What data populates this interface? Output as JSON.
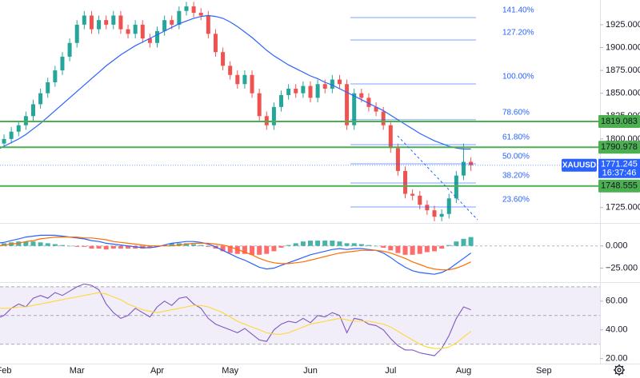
{
  "chart_data": [
    {
      "type": "candlestick",
      "x": [
        -2,
        0,
        2,
        4,
        6,
        8,
        10,
        12,
        14,
        16,
        18,
        20,
        22,
        24,
        26,
        28,
        30,
        32,
        34,
        36,
        38,
        40,
        42,
        44,
        46,
        48,
        50,
        52,
        54,
        56,
        58,
        60,
        62,
        64,
        66,
        68,
        70,
        72,
        74,
        76,
        78,
        80,
        82,
        84,
        86,
        88,
        90,
        92,
        94,
        96,
        98,
        100,
        102,
        104,
        106,
        108,
        110,
        112,
        114,
        116,
        118,
        120,
        122,
        124,
        126,
        128
      ],
      "open": [
        1790,
        1795,
        1800,
        1808,
        1815,
        1825,
        1838,
        1850,
        1862,
        1875,
        1890,
        1905,
        1925,
        1935,
        1920,
        1930,
        1925,
        1935,
        1920,
        1915,
        1925,
        1910,
        1905,
        1918,
        1930,
        1925,
        1940,
        1945,
        1938,
        1935,
        1915,
        1895,
        1880,
        1870,
        1860,
        1870,
        1850,
        1825,
        1815,
        1835,
        1848,
        1855,
        1850,
        1858,
        1845,
        1860,
        1855,
        1865,
        1860,
        1815,
        1850,
        1845,
        1835,
        1830,
        1815,
        1790,
        1765,
        1740,
        1738,
        1728,
        1722,
        1715,
        1718,
        1735,
        1760,
        1775
      ],
      "high": [
        1800,
        1805,
        1813,
        1820,
        1830,
        1843,
        1855,
        1867,
        1880,
        1895,
        1910,
        1930,
        1940,
        1940,
        1935,
        1935,
        1940,
        1940,
        1925,
        1930,
        1930,
        1915,
        1923,
        1935,
        1935,
        1945,
        1950,
        1950,
        1943,
        1940,
        1920,
        1900,
        1885,
        1875,
        1875,
        1875,
        1855,
        1830,
        1840,
        1853,
        1860,
        1860,
        1863,
        1863,
        1865,
        1865,
        1870,
        1870,
        1865,
        1855,
        1855,
        1850,
        1840,
        1835,
        1820,
        1795,
        1770,
        1745,
        1743,
        1733,
        1727,
        1723,
        1740,
        1765,
        1795,
        1780
      ],
      "low": [
        1785,
        1790,
        1795,
        1803,
        1810,
        1820,
        1833,
        1845,
        1857,
        1870,
        1885,
        1900,
        1920,
        1915,
        1915,
        1920,
        1920,
        1915,
        1910,
        1910,
        1905,
        1900,
        1900,
        1913,
        1920,
        1920,
        1935,
        1933,
        1930,
        1910,
        1890,
        1875,
        1865,
        1855,
        1855,
        1845,
        1820,
        1810,
        1810,
        1830,
        1843,
        1845,
        1845,
        1840,
        1840,
        1850,
        1850,
        1855,
        1810,
        1810,
        1840,
        1830,
        1825,
        1810,
        1785,
        1760,
        1735,
        1733,
        1723,
        1717,
        1710,
        1710,
        1713,
        1730,
        1755,
        1765
      ],
      "close": [
        1795,
        1800,
        1808,
        1815,
        1825,
        1838,
        1850,
        1862,
        1875,
        1890,
        1905,
        1925,
        1935,
        1920,
        1930,
        1925,
        1935,
        1920,
        1915,
        1925,
        1910,
        1905,
        1918,
        1930,
        1925,
        1940,
        1945,
        1938,
        1935,
        1915,
        1895,
        1880,
        1870,
        1860,
        1870,
        1850,
        1825,
        1815,
        1835,
        1848,
        1855,
        1850,
        1858,
        1845,
        1860,
        1855,
        1865,
        1860,
        1815,
        1850,
        1845,
        1835,
        1830,
        1815,
        1790,
        1765,
        1740,
        1738,
        1728,
        1722,
        1715,
        1718,
        1735,
        1760,
        1775,
        1771.245
      ],
      "up_color": "#26a69a",
      "down_color": "#ef5350",
      "moving_average": {
        "color": "#2962ff",
        "values": [
          1788,
          1792,
          1796,
          1800,
          1805,
          1811,
          1817,
          1824,
          1831,
          1838,
          1845,
          1852,
          1859,
          1866,
          1873,
          1880,
          1886,
          1892,
          1897,
          1902,
          1906,
          1910,
          1914,
          1918,
          1922,
          1926,
          1929,
          1932,
          1934,
          1935,
          1934,
          1932,
          1928,
          1923,
          1917,
          1911,
          1904,
          1897,
          1891,
          1886,
          1881,
          1877,
          1873,
          1869,
          1866,
          1862,
          1859,
          1855,
          1851,
          1847,
          1843,
          1839,
          1835,
          1831,
          1826,
          1821,
          1816,
          1811,
          1806,
          1802,
          1798,
          1795,
          1792,
          1790,
          1789,
          1789
        ]
      },
      "xlim": [
        -1.1,
        163.4
      ],
      "ylim": [
        1709,
        1952
      ],
      "yticks": [
        {
          "value": 1925,
          "label": "1925.000"
        },
        {
          "value": 1900,
          "label": "1900.000"
        },
        {
          "value": 1875,
          "label": "1875.000"
        },
        {
          "value": 1850,
          "label": "1850.000"
        },
        {
          "value": 1825,
          "label": "1825.000"
        },
        {
          "value": 1800,
          "label": "1800.000"
        },
        {
          "value": 1725,
          "label": "1725.000"
        }
      ],
      "levels": [
        1819.083,
        1790.978,
        1748.555
      ],
      "level_color": "#4caf50",
      "fib_levels": [
        {
          "name": "141.40%",
          "price": 1932.8
        },
        {
          "name": "127.20%",
          "price": 1908.3
        },
        {
          "name": "100.00%",
          "price": 1860.2
        },
        {
          "name": "78.60%",
          "price": 1821
        },
        {
          "name": "61.80%",
          "price": 1793.8
        },
        {
          "name": "50.00%",
          "price": 1772.8
        },
        {
          "name": "38.20%",
          "price": 1751.8
        },
        {
          "name": "23.60%",
          "price": 1725.6
        }
      ],
      "fib_color": "#2962ff",
      "symbol": "XAUUSD",
      "last_price": 1771.245,
      "countdown": "16:37:46",
      "last_color": "#2962ff"
    },
    {
      "type": "macd",
      "macd": {
        "color": "#2962ff",
        "values": [
          3,
          4,
          6,
          8,
          10,
          11,
          12,
          12,
          12,
          11,
          10,
          9,
          8,
          6,
          5,
          3,
          2,
          1,
          0,
          -1,
          -2,
          -2,
          -1,
          1,
          3,
          4,
          5,
          5,
          4,
          2,
          -1,
          -5,
          -9,
          -13,
          -16,
          -20,
          -24,
          -26,
          -25,
          -22,
          -19,
          -16,
          -13,
          -10,
          -8,
          -6,
          -4,
          -3,
          -4,
          -3,
          -3,
          -4,
          -5,
          -8,
          -13,
          -19,
          -24,
          -28,
          -30,
          -31,
          -32,
          -30,
          -26,
          -20,
          -14,
          -8
        ]
      },
      "signal": {
        "color": "#ff6d00",
        "values": [
          0,
          1,
          2,
          3,
          5,
          6,
          8,
          9,
          10,
          10,
          10,
          10,
          9,
          9,
          8,
          7,
          5,
          4,
          3,
          2,
          1,
          0,
          0,
          0,
          0,
          1,
          2,
          3,
          3,
          3,
          2,
          1,
          -1,
          -4,
          -7,
          -10,
          -14,
          -17,
          -19,
          -20,
          -20,
          -19,
          -18,
          -16,
          -14,
          -12,
          -10,
          -8,
          -7,
          -6,
          -5,
          -5,
          -5,
          -6,
          -8,
          -11,
          -14,
          -18,
          -21,
          -24,
          -26,
          -27,
          -27,
          -25,
          -22,
          -18
        ]
      },
      "histogram": {
        "up_color": "#26a69a",
        "down_color": "#ff5252",
        "values": [
          3,
          3,
          4,
          5,
          5,
          5,
          4,
          3,
          2,
          1,
          0,
          -1,
          -1,
          -3,
          -3,
          -4,
          -3,
          -3,
          -3,
          -3,
          -3,
          -2,
          -1,
          1,
          3,
          3,
          3,
          2,
          1,
          -1,
          -3,
          -6,
          -8,
          -9,
          -9,
          -10,
          -10,
          -9,
          -6,
          -2,
          1,
          3,
          5,
          6,
          6,
          6,
          6,
          5,
          3,
          3,
          2,
          1,
          0,
          -2,
          -5,
          -8,
          -10,
          -10,
          -9,
          -7,
          -6,
          -3,
          1,
          5,
          8,
          10
        ]
      },
      "ylim": [
        -39,
        25
      ],
      "yticks": [
        {
          "value": 0,
          "label": "0.000"
        },
        {
          "value": -25,
          "label": "−25.000"
        }
      ]
    },
    {
      "type": "line",
      "series": [
        {
          "color": "#7e57c2",
          "values": [
            48,
            50,
            55,
            58,
            56,
            62,
            64,
            62,
            66,
            64,
            67,
            70,
            72,
            71,
            68,
            58,
            52,
            48,
            50,
            55,
            52,
            49,
            56,
            60,
            57,
            62,
            63,
            58,
            55,
            48,
            44,
            42,
            40,
            38,
            41,
            37,
            33,
            32,
            40,
            44,
            46,
            45,
            48,
            45,
            50,
            49,
            52,
            50,
            38,
            48,
            47,
            44,
            43,
            40,
            34,
            29,
            26,
            26,
            24,
            23,
            22,
            27,
            36,
            48,
            56,
            54
          ]
        },
        {
          "color": "#fdd835",
          "values": [
            55,
            55,
            55,
            56,
            56,
            57,
            58,
            59,
            60,
            61,
            62,
            63,
            64,
            65,
            66,
            65,
            63,
            61,
            58,
            56,
            54,
            53,
            52,
            53,
            54,
            55,
            56,
            57,
            57,
            56,
            54,
            52,
            49,
            46,
            44,
            42,
            40,
            38,
            37,
            37,
            38,
            40,
            42,
            44,
            45,
            46,
            47,
            48,
            47,
            46,
            46,
            46,
            45,
            44,
            42,
            39,
            36,
            33,
            30,
            28,
            27,
            27,
            28,
            31,
            35,
            39
          ]
        }
      ],
      "band": [
        30,
        70
      ],
      "midline": 50,
      "ylim": [
        16.5,
        71.6
      ],
      "yticks": [
        {
          "value": 60,
          "label": "60.00"
        },
        {
          "value": 40,
          "label": "40.00"
        },
        {
          "value": 20,
          "label": "20.00"
        }
      ],
      "xticks": [
        {
          "value": 0,
          "label": "Feb"
        },
        {
          "value": 20,
          "label": "Mar"
        },
        {
          "value": 42,
          "label": "Apr"
        },
        {
          "value": 62,
          "label": "May"
        },
        {
          "value": 84,
          "label": "Jun"
        },
        {
          "value": 106,
          "label": "Jul"
        },
        {
          "value": 126,
          "label": "Aug"
        },
        {
          "value": 148,
          "label": "Sep"
        }
      ]
    }
  ]
}
